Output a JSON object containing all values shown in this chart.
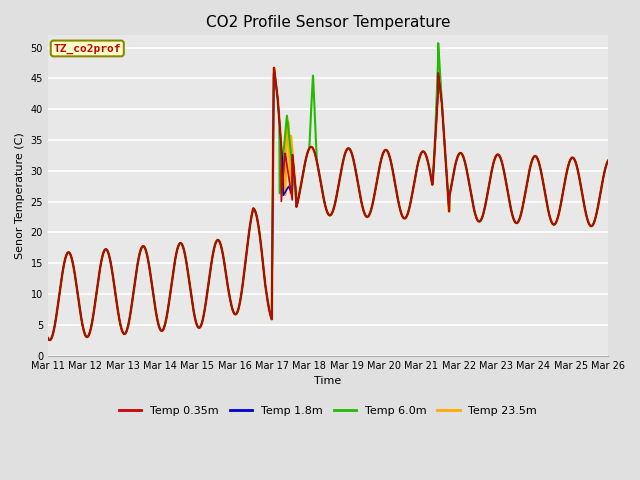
{
  "title": "CO2 Profile Sensor Temperature",
  "ylabel": "Senor Temperature (C)",
  "xlabel": "Time",
  "annotation_text": "TZ_co2prof",
  "annotation_color": "#cc0000",
  "annotation_box_facecolor": "#ffffcc",
  "annotation_box_edgecolor": "#888800",
  "ylim": [
    0,
    52
  ],
  "yticks": [
    0,
    5,
    10,
    15,
    20,
    25,
    30,
    35,
    40,
    45,
    50
  ],
  "plot_bg_color": "#e8e8e8",
  "fig_bg_color": "#e0e0e0",
  "title_fontsize": 11,
  "label_fontsize": 8,
  "tick_fontsize": 7
}
